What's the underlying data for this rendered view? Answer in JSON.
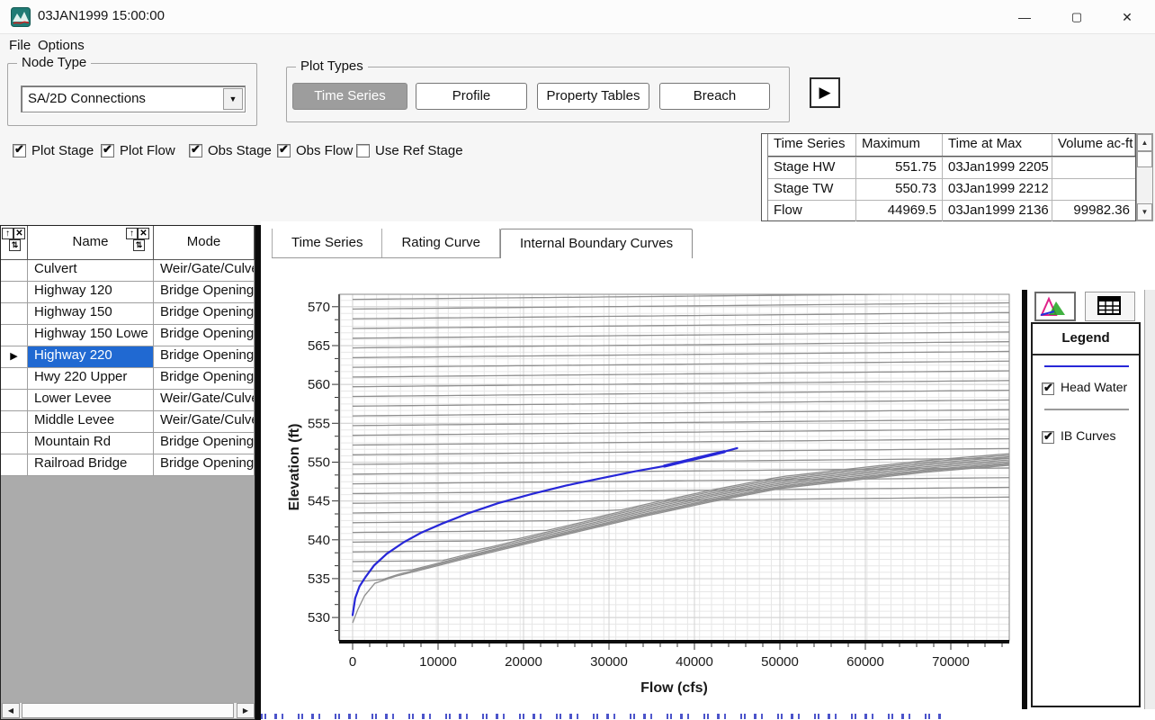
{
  "window": {
    "title": "03JAN1999 15:00:00",
    "controls": {
      "minimize": "—",
      "maximize": "▢",
      "close": "✕"
    }
  },
  "menu": {
    "items": [
      "File",
      "Options"
    ]
  },
  "node_type": {
    "label": "Node Type",
    "selected": "SA/2D Connections"
  },
  "plot_types": {
    "label": "Plot Types",
    "buttons": [
      {
        "label": "Time Series",
        "active": true
      },
      {
        "label": "Profile",
        "active": false
      },
      {
        "label": "Property Tables",
        "active": false
      },
      {
        "label": "Breach",
        "active": false
      }
    ]
  },
  "animate_button": {
    "glyph": "▶"
  },
  "toggles": [
    {
      "label": "Plot Stage",
      "checked": true
    },
    {
      "label": "Plot Flow",
      "checked": true
    },
    {
      "label": "Obs Stage",
      "checked": true
    },
    {
      "label": "Obs Flow",
      "checked": true
    },
    {
      "label": "Use Ref Stage",
      "checked": false
    }
  ],
  "max_table": {
    "headers": [
      "Time Series",
      "Maximum",
      "Time at Max",
      "Volume ac-ft"
    ],
    "rows": [
      [
        "Stage HW",
        "551.75",
        "03Jan1999 2205",
        ""
      ],
      [
        "Stage TW",
        "550.73",
        "03Jan1999 2212",
        ""
      ],
      [
        "Flow",
        "44969.5",
        "03Jan1999 2136",
        "99982.36"
      ]
    ]
  },
  "node_table": {
    "headers": [
      "Name",
      "Mode"
    ],
    "selected_index": 4,
    "rows": [
      [
        "Culvert",
        "Weir/Gate/Culve"
      ],
      [
        "Highway 120",
        "Bridge Opening"
      ],
      [
        "Highway 150",
        "Bridge Opening"
      ],
      [
        "Highway 150 Lowe",
        "Bridge Opening"
      ],
      [
        "Highway 220",
        "Bridge Opening"
      ],
      [
        "Hwy 220 Upper",
        "Bridge Opening"
      ],
      [
        "Lower Levee",
        "Weir/Gate/Culve"
      ],
      [
        "Middle Levee",
        "Weir/Gate/Culve"
      ],
      [
        "Mountain Rd",
        "Bridge Opening"
      ],
      [
        "Railroad Bridge",
        "Bridge Opening"
      ]
    ]
  },
  "tabs": [
    {
      "label": "Time Series",
      "active": false
    },
    {
      "label": "Rating Curve",
      "active": false
    },
    {
      "label": "Internal Boundary Curves",
      "active": true
    }
  ],
  "legend": {
    "title": "Legend",
    "items": [
      {
        "label": "Head Water",
        "checked": true,
        "color": "#2727d8"
      },
      {
        "label": "IB Curves",
        "checked": true,
        "color": "#9a9a9a"
      }
    ]
  },
  "chart_data": {
    "type": "line",
    "xlabel": "Flow (cfs)",
    "ylabel": "Elevation (ft)",
    "xlim": [
      -1580,
      76840
    ],
    "ylim": [
      527.0,
      571.6
    ],
    "xticks": [
      0,
      10000,
      20000,
      30000,
      40000,
      50000,
      60000,
      70000
    ],
    "yticks": [
      530,
      535,
      540,
      545,
      550,
      555,
      560,
      565,
      570
    ],
    "grid": {
      "x_minor": 1400,
      "y_minor": 0.8333,
      "on": true
    },
    "legend_position": "right-panel",
    "series": [
      {
        "name": "Head Water",
        "color": "#2727d8",
        "width": 2.2,
        "points": [
          [
            0,
            530.3
          ],
          [
            300,
            532.5
          ],
          [
            800,
            534.0
          ],
          [
            1500,
            535.2
          ],
          [
            2500,
            536.7
          ],
          [
            4000,
            538.2
          ],
          [
            6000,
            539.7
          ],
          [
            8000,
            540.9
          ],
          [
            10500,
            542.1
          ],
          [
            13500,
            543.4
          ],
          [
            17000,
            544.7
          ],
          [
            21000,
            545.9
          ],
          [
            25000,
            547.0
          ],
          [
            29000,
            547.9
          ],
          [
            33000,
            548.8
          ],
          [
            37000,
            549.6
          ],
          [
            40500,
            550.5
          ],
          [
            43000,
            551.2
          ],
          [
            45000,
            551.8
          ]
        ]
      },
      {
        "name": "Head Water peak overlap",
        "color": "#2727d8",
        "width": 3.4,
        "points": [
          [
            36500,
            549.5
          ],
          [
            40500,
            550.55
          ],
          [
            43500,
            551.35
          ]
        ]
      }
    ],
    "ib_curves": {
      "name": "IB Curves",
      "color": "#8f8f8f",
      "width": 1.3,
      "free_flow_envelope": [
        [
          0,
          529.3
        ],
        [
          600,
          531.0
        ],
        [
          1400,
          532.8
        ],
        [
          2600,
          534.4
        ],
        [
          5000,
          535.3
        ],
        [
          9000,
          536.4
        ],
        [
          14000,
          537.8
        ],
        [
          20000,
          539.4
        ],
        [
          27000,
          541.2
        ],
        [
          34000,
          543.0
        ],
        [
          42000,
          544.9
        ],
        [
          50000,
          546.6
        ],
        [
          58000,
          547.6
        ],
        [
          67000,
          548.7
        ],
        [
          77000,
          549.6
        ]
      ],
      "tailwater_elevations": [
        534.7,
        535.95,
        537.2,
        538.45,
        539.7,
        540.95,
        542.2,
        543.45,
        544.7,
        545.95,
        547.2,
        548.45,
        549.7,
        550.95,
        552.2,
        553.45,
        554.7,
        555.95,
        557.2,
        558.45,
        559.7,
        560.95,
        562.2,
        563.45,
        564.7,
        565.95,
        567.2,
        568.45,
        569.7,
        570.95
      ],
      "fan_deltas": [
        0.15,
        0.3,
        0.5,
        0.7,
        0.9,
        1.1,
        1.3,
        1.5
      ],
      "flat_rise": 0.8,
      "x_end": 77000
    }
  }
}
